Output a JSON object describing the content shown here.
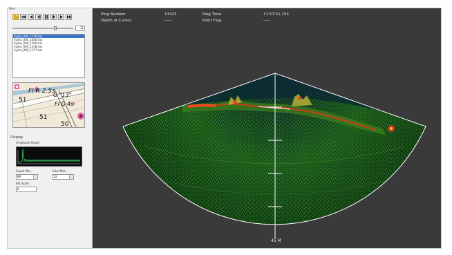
{
  "panel": {
    "menu_caption": "Files",
    "frame_value": "11",
    "slider_fraction": 0.72,
    "files": [
      "hydro_000_1118.hsx",
      "hydro_000_1206.hsx",
      "hydro_000_1209.hsx",
      "hydro_000_1218.hsx",
      "hydro_000_1217.hsx"
    ],
    "chart_labels": {
      "l1": "Fl R 2.5s",
      "l2": "G \"13\"",
      "l3": "Fl G 4s",
      "d1": "51",
      "d2": "51",
      "d3": "50"
    },
    "display_label": "Display",
    "amplitude_label": "Amplitude Graph",
    "graph_max_label": "Graph Max",
    "graph_max_value": "80",
    "color_max_label": "Color Max",
    "color_max_value": "13",
    "bot_scale_label": "Bot Scale",
    "bot_scale_value": "0"
  },
  "header": {
    "ping_number_label": "Ping Number",
    "ping_number_value": "13423",
    "ping_time_label": "Ping Time",
    "ping_time_value": "11:57:51.154",
    "depth_label": "Depth at Cursor",
    "depth_value": "-----",
    "point_flag_label": "Point Flag",
    "point_flag_value": "-----"
  },
  "sonar": {
    "range_label": "45 M",
    "background_color": "#3a3a3a",
    "water_color": "#0d3b1e",
    "return_color": "#e8331c"
  }
}
